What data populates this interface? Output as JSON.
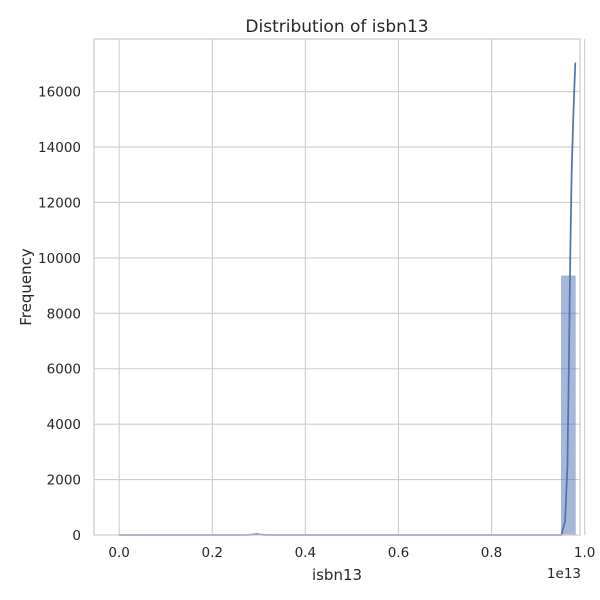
{
  "chart_data": {
    "type": "histogram",
    "title": "Distribution of isbn13",
    "xlabel": "isbn13",
    "ylabel": "Frequency",
    "x_offset_text": "1e13",
    "xlim": [
      -0.054,
      0.99
    ],
    "ylim": [
      0,
      17900
    ],
    "x_ticks": [
      0.0,
      0.2,
      0.4,
      0.6,
      0.8,
      1.0
    ],
    "x_tick_labels": [
      "0.0",
      "0.2",
      "0.4",
      "0.6",
      "0.8",
      "1.0"
    ],
    "y_ticks": [
      0,
      2000,
      4000,
      6000,
      8000,
      10000,
      12000,
      14000,
      16000
    ],
    "y_tick_labels": [
      "0",
      "2000",
      "4000",
      "6000",
      "8000",
      "10000",
      "12000",
      "14000",
      "16000"
    ],
    "grid": true,
    "bars": [
      {
        "x0": 0.29,
        "x1": 0.32,
        "value": 30
      },
      {
        "x0": 0.95,
        "x1": 0.98,
        "value": 9350
      }
    ],
    "kde": {
      "x": [
        0.0,
        0.25,
        0.28,
        0.295,
        0.31,
        0.34,
        0.4,
        0.9,
        0.95,
        0.958,
        0.963,
        0.966,
        0.969,
        0.972,
        0.975,
        0.978,
        0.98
      ],
      "y": [
        0,
        0,
        5,
        30,
        5,
        0,
        0,
        0,
        0,
        500,
        2500,
        6000,
        10000,
        13000,
        14800,
        16200,
        17050
      ]
    },
    "colors": {
      "bar": "#4c72b0",
      "line": "#4c72b0",
      "grid": "#cccccc",
      "frame": "#cccccc",
      "text": "#262626"
    }
  }
}
